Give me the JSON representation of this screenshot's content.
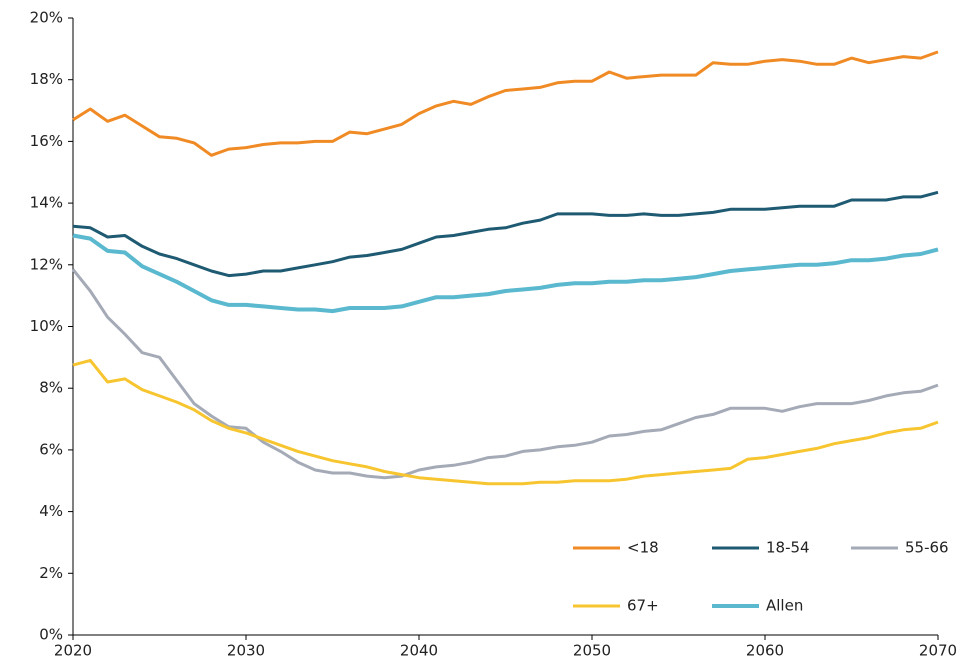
{
  "chart_data": {
    "type": "line",
    "x": [
      2020,
      2021,
      2022,
      2023,
      2024,
      2025,
      2026,
      2027,
      2028,
      2029,
      2030,
      2031,
      2032,
      2033,
      2034,
      2035,
      2036,
      2037,
      2038,
      2039,
      2040,
      2041,
      2042,
      2043,
      2044,
      2045,
      2046,
      2047,
      2048,
      2049,
      2050,
      2051,
      2052,
      2053,
      2054,
      2055,
      2056,
      2057,
      2058,
      2059,
      2060,
      2061,
      2062,
      2063,
      2064,
      2065,
      2066,
      2067,
      2068,
      2069,
      2070
    ],
    "series": [
      {
        "name": "<18",
        "color": "#f08a24",
        "values": [
          16.7,
          17.05,
          16.65,
          16.85,
          16.5,
          16.15,
          16.1,
          15.95,
          15.55,
          15.75,
          15.8,
          15.9,
          15.95,
          15.95,
          16.0,
          16.0,
          16.3,
          16.25,
          16.4,
          16.55,
          16.9,
          17.15,
          17.3,
          17.2,
          17.45,
          17.65,
          17.7,
          17.75,
          17.9,
          17.95,
          17.95,
          18.25,
          18.05,
          18.1,
          18.15,
          18.15,
          18.15,
          18.55,
          18.5,
          18.5,
          18.6,
          18.65,
          18.6,
          18.5,
          18.5,
          18.7,
          18.55,
          18.65,
          18.75,
          18.7,
          18.9
        ]
      },
      {
        "name": "18-54",
        "color": "#1f5a73",
        "values": [
          13.25,
          13.2,
          12.9,
          12.95,
          12.6,
          12.35,
          12.2,
          12.0,
          11.8,
          11.65,
          11.7,
          11.8,
          11.8,
          11.9,
          12.0,
          12.1,
          12.25,
          12.3,
          12.4,
          12.5,
          12.7,
          12.9,
          12.95,
          13.05,
          13.15,
          13.2,
          13.35,
          13.45,
          13.65,
          13.65,
          13.65,
          13.6,
          13.6,
          13.65,
          13.6,
          13.6,
          13.65,
          13.7,
          13.8,
          13.8,
          13.8,
          13.85,
          13.9,
          13.9,
          13.9,
          14.1,
          14.1,
          14.1,
          14.2,
          14.2,
          14.35
        ]
      },
      {
        "name": "55-66",
        "color": "#a5aab7",
        "values": [
          11.85,
          11.15,
          10.3,
          9.75,
          9.15,
          9.0,
          8.25,
          7.5,
          7.1,
          6.75,
          6.7,
          6.25,
          5.95,
          5.6,
          5.35,
          5.25,
          5.25,
          5.15,
          5.1,
          5.15,
          5.35,
          5.45,
          5.5,
          5.6,
          5.75,
          5.8,
          5.95,
          6.0,
          6.1,
          6.15,
          6.25,
          6.45,
          6.5,
          6.6,
          6.65,
          6.85,
          7.05,
          7.15,
          7.35,
          7.35,
          7.35,
          7.25,
          7.4,
          7.5,
          7.5,
          7.5,
          7.6,
          7.75,
          7.85,
          7.9,
          8.1
        ]
      },
      {
        "name": "67+",
        "color": "#f7c52f",
        "values": [
          8.75,
          8.9,
          8.2,
          8.3,
          7.95,
          7.75,
          7.55,
          7.3,
          6.95,
          6.7,
          6.55,
          6.35,
          6.15,
          5.95,
          5.8,
          5.65,
          5.55,
          5.45,
          5.3,
          5.2,
          5.1,
          5.05,
          5.0,
          4.95,
          4.9,
          4.9,
          4.9,
          4.95,
          4.95,
          5.0,
          5.0,
          5.0,
          5.05,
          5.15,
          5.2,
          5.25,
          5.3,
          5.35,
          5.4,
          5.7,
          5.75,
          5.85,
          5.95,
          6.05,
          6.2,
          6.3,
          6.4,
          6.55,
          6.65,
          6.7,
          6.9
        ]
      },
      {
        "name": "Allen",
        "color": "#5ab8cf",
        "values": [
          12.95,
          12.85,
          12.45,
          12.4,
          11.95,
          11.7,
          11.45,
          11.15,
          10.85,
          10.7,
          10.7,
          10.65,
          10.6,
          10.55,
          10.55,
          10.5,
          10.6,
          10.6,
          10.6,
          10.65,
          10.8,
          10.95,
          10.95,
          11.0,
          11.05,
          11.15,
          11.2,
          11.25,
          11.35,
          11.4,
          11.4,
          11.45,
          11.45,
          11.5,
          11.5,
          11.55,
          11.6,
          11.7,
          11.8,
          11.85,
          11.9,
          11.95,
          12.0,
          12.0,
          12.05,
          12.15,
          12.15,
          12.2,
          12.3,
          12.35,
          12.5
        ]
      }
    ],
    "xlim": [
      2020,
      2070
    ],
    "xticks": [
      2020,
      2030,
      2040,
      2050,
      2060,
      2070
    ],
    "ylim": [
      0,
      20
    ],
    "yticks": [
      {
        "value": 0,
        "label": "0%"
      },
      {
        "value": 2,
        "label": "2%"
      },
      {
        "value": 4,
        "label": "4%"
      },
      {
        "value": 6,
        "label": "6%"
      },
      {
        "value": 8,
        "label": "8%"
      },
      {
        "value": 10,
        "label": "10%"
      },
      {
        "value": 12,
        "label": "12%"
      },
      {
        "value": 14,
        "label": "14%"
      },
      {
        "value": 16,
        "label": "16%"
      },
      {
        "value": 18,
        "label": "18%"
      },
      {
        "value": 20,
        "label": "20%"
      }
    ],
    "legend": "lower right"
  }
}
